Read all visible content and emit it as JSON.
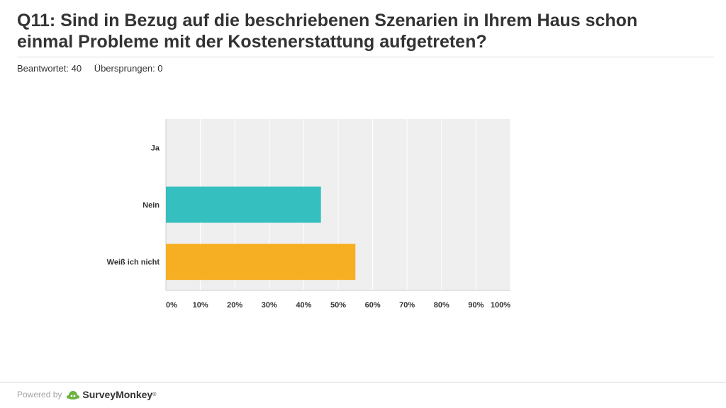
{
  "header": {
    "title": "Q11: Sind in Bezug auf die beschriebenen Szenarien in Ihrem Haus schon einmal Probleme mit der Kostenerstattung aufgetreten?",
    "answered": "Beantwortet: 40",
    "skipped": "Übersprungen: 0"
  },
  "footer": {
    "powered_by": "Powered by",
    "brand": "SurveyMonkey",
    "brand_mark": "®"
  },
  "colors": {
    "plot_bg": "#efefef",
    "grid": "#ffffff",
    "axis": "#cfcfcf",
    "bar_nein": "#35bfbf",
    "bar_weiss": "#f6ae23",
    "logo": "#6cb33f"
  },
  "chart_data": {
    "type": "bar",
    "orientation": "horizontal",
    "categories": [
      "Ja",
      "Nein",
      "Weiß ich nicht"
    ],
    "values": [
      0,
      45,
      55
    ],
    "unit": "%",
    "xlim": [
      0,
      100
    ],
    "xticks": [
      "0%",
      "10%",
      "20%",
      "30%",
      "40%",
      "50%",
      "60%",
      "70%",
      "80%",
      "90%",
      "100%"
    ],
    "grid": true,
    "legend": "none",
    "title": "",
    "xlabel": "",
    "ylabel": ""
  }
}
